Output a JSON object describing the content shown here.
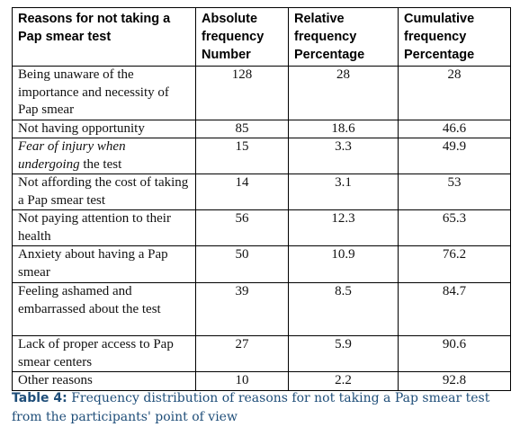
{
  "table": {
    "header": [
      "Reasons for not taking a Pap smear test",
      "Absolute frequency Number",
      "Relative frequency Percentage",
      "Cumulative frequency Percentage"
    ],
    "rows": [
      [
        "Being unaware of the importance and necessity of Pap smear",
        "128",
        "28",
        "28"
      ],
      [
        "Not having opportunity",
        "85",
        "18.6",
        "46.6"
      ],
      [
        [
          "Fear of injury when undergoing",
          "the test"
        ],
        "15",
        "3.3",
        "49.9"
      ],
      [
        "Not affording the cost of taking a Pap smear test",
        "14",
        "3.1",
        "53"
      ],
      [
        "Not paying attention to their health",
        "56",
        "12.3",
        "65.3"
      ],
      [
        "Anxiety about having a Pap smear",
        "50",
        "10.9",
        "76.2"
      ],
      [
        "Feeling ashamed and embarrassed about the test",
        "39",
        "8.5",
        "84.7"
      ],
      [
        "Lack of proper access to Pap smear centers",
        "27",
        "5.9",
        "90.6"
      ],
      [
        "Other reasons",
        "10",
        "2.2",
        "92.8"
      ]
    ]
  },
  "caption": {
    "label": "Table 4:",
    "text": "Frequency distribution of reasons for not taking a Pap smear test from the participants' point of view"
  }
}
